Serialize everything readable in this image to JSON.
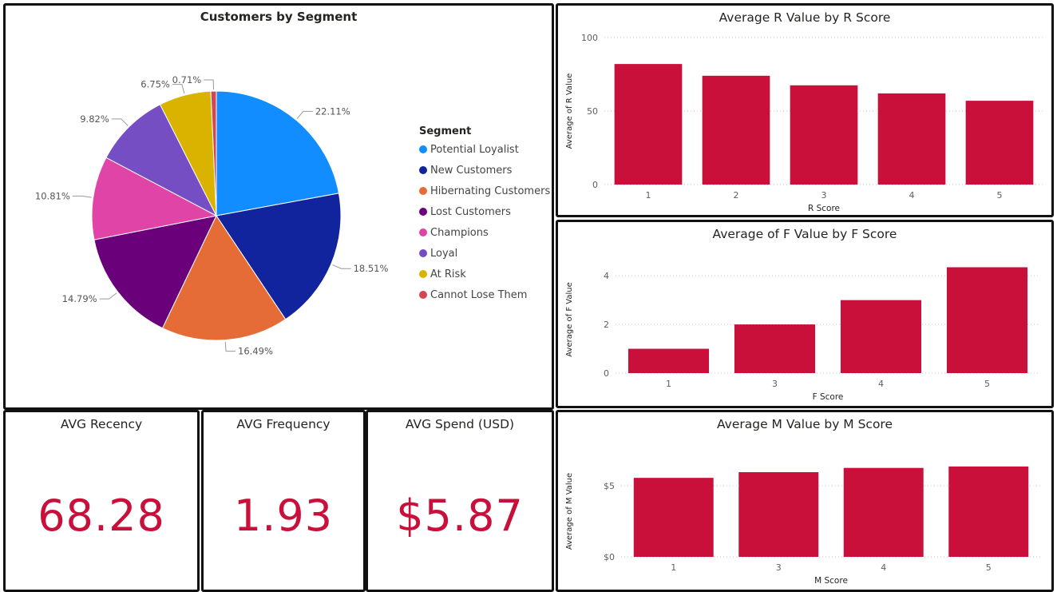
{
  "colors": {
    "bar": "#c8103b",
    "kpi": "#c8103b"
  },
  "pie": {
    "title": "Customers by Segment",
    "legend_title": "Segment"
  },
  "kpis": [
    {
      "label": "AVG Recency",
      "value": "68.28"
    },
    {
      "label": "AVG Frequency",
      "value": "1.93"
    },
    {
      "label": "AVG Spend (USD)",
      "value": "$5.87"
    }
  ],
  "chart_data": [
    {
      "type": "pie",
      "title": "Customers by Segment",
      "legend_title": "Segment",
      "legend_position": "right",
      "slices": [
        {
          "name": "Potential Loyalist",
          "value": 22.11,
          "label": "22.11%",
          "color": "#118dff"
        },
        {
          "name": "New Customers",
          "value": 18.51,
          "label": "18.51%",
          "color": "#12239e"
        },
        {
          "name": "Hibernating Customers",
          "value": 16.49,
          "label": "16.49%",
          "color": "#e66c37"
        },
        {
          "name": "Lost Customers",
          "value": 14.79,
          "label": "14.79%",
          "color": "#6b007b"
        },
        {
          "name": "Champions",
          "value": 10.81,
          "label": "10.81%",
          "color": "#e044a7"
        },
        {
          "name": "Loyal",
          "value": 9.82,
          "label": "9.82%",
          "color": "#744ec2"
        },
        {
          "name": "At Risk",
          "value": 6.75,
          "label": "6.75%",
          "color": "#d9b300"
        },
        {
          "name": "Cannot Lose Them",
          "value": 0.71,
          "label": "0.71%",
          "color": "#d64550"
        }
      ]
    },
    {
      "type": "bar",
      "title": "Average R Value by R Score",
      "xlabel": "R Score",
      "ylabel": "Average of R Value",
      "categories": [
        "1",
        "2",
        "3",
        "4",
        "5"
      ],
      "values": [
        82,
        74,
        67.5,
        62,
        57
      ],
      "ylim": [
        0,
        100
      ],
      "yticks": [
        0,
        50,
        100
      ],
      "ytick_labels": [
        "0",
        "50",
        "100"
      ],
      "grid": true
    },
    {
      "type": "bar",
      "title": "Average of F Value by F Score",
      "xlabel": "F Score",
      "ylabel": "Average of F Value",
      "categories": [
        "1",
        "3",
        "4",
        "5"
      ],
      "values": [
        1,
        2,
        3,
        4.35
      ],
      "ylim": [
        0,
        4.4
      ],
      "yticks": [
        0,
        2,
        4
      ],
      "ytick_labels": [
        "0",
        "2",
        "4"
      ],
      "grid": true
    },
    {
      "type": "bar",
      "title": "Average M Value by M Score",
      "xlabel": "M Score",
      "ylabel": "Average of M Value",
      "categories": [
        "1",
        "3",
        "4",
        "5"
      ],
      "values": [
        5.55,
        5.95,
        6.25,
        6.35
      ],
      "ylim": [
        0,
        6.4
      ],
      "yticks": [
        0,
        5
      ],
      "ytick_labels": [
        "$0",
        "$5"
      ],
      "grid": true
    }
  ]
}
